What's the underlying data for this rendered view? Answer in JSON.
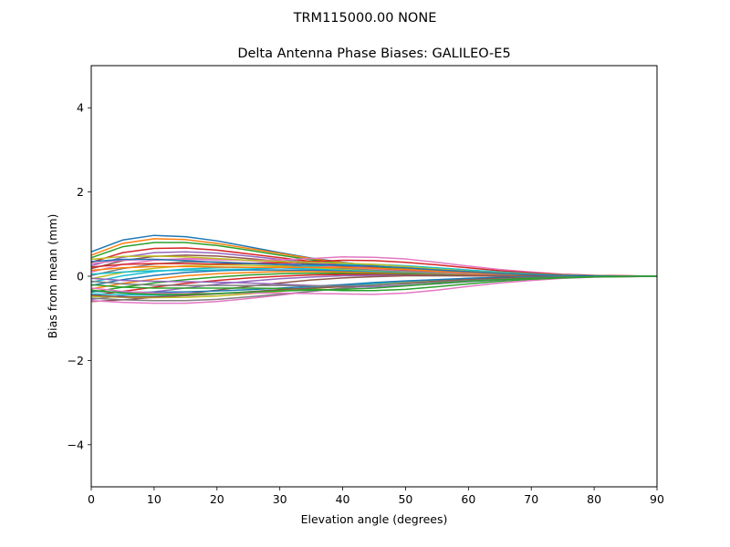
{
  "figure": {
    "suptitle": "TRM115000.00    NONE"
  },
  "chart_data": {
    "type": "line",
    "title": "Delta Antenna Phase Biases: GALILEO-E5",
    "xlabel": "Elevation angle (degrees)",
    "ylabel": "Bias from mean (mm)",
    "xlim": [
      0,
      90
    ],
    "ylim": [
      -5,
      5
    ],
    "xticks": [
      0,
      10,
      20,
      30,
      40,
      50,
      60,
      70,
      80,
      90
    ],
    "yticks": [
      -4,
      -2,
      0,
      2,
      4
    ],
    "ytick_labels": [
      "−4",
      "−2",
      "0",
      "2",
      "4"
    ],
    "grid": false,
    "legend": "none",
    "x": [
      0,
      5,
      10,
      15,
      20,
      25,
      30,
      35,
      40,
      45,
      50,
      55,
      60,
      65,
      70,
      75,
      80,
      85,
      90
    ],
    "series": [
      {
        "color": "#1f77b4",
        "values": [
          0.58,
          0.86,
          0.97,
          0.94,
          0.84,
          0.7,
          0.56,
          0.43,
          0.33,
          0.25,
          0.18,
          0.13,
          0.09,
          0.06,
          0.04,
          0.02,
          0.01,
          0.0,
          0.0
        ]
      },
      {
        "color": "#ff7f0e",
        "values": [
          0.5,
          0.78,
          0.89,
          0.87,
          0.78,
          0.66,
          0.54,
          0.42,
          0.32,
          0.24,
          0.17,
          0.12,
          0.08,
          0.05,
          0.03,
          0.02,
          0.01,
          0.0,
          0.0
        ]
      },
      {
        "color": "#2ca02c",
        "values": [
          0.44,
          0.7,
          0.8,
          0.8,
          0.73,
          0.62,
          0.5,
          0.39,
          0.3,
          0.22,
          0.16,
          0.11,
          0.07,
          0.05,
          0.03,
          0.02,
          0.01,
          0.0,
          0.0
        ]
      },
      {
        "color": "#d62728",
        "values": [
          0.33,
          0.56,
          0.66,
          0.67,
          0.62,
          0.53,
          0.44,
          0.35,
          0.27,
          0.2,
          0.14,
          0.1,
          0.07,
          0.04,
          0.03,
          0.02,
          0.01,
          0.0,
          0.0
        ]
      },
      {
        "color": "#9467bd",
        "values": [
          0.25,
          0.45,
          0.56,
          0.58,
          0.55,
          0.48,
          0.4,
          0.32,
          0.25,
          0.19,
          0.13,
          0.09,
          0.06,
          0.04,
          0.02,
          0.01,
          0.01,
          0.0,
          0.0
        ]
      },
      {
        "color": "#8c564b",
        "values": [
          0.18,
          0.37,
          0.47,
          0.5,
          0.48,
          0.42,
          0.36,
          0.29,
          0.23,
          0.17,
          0.12,
          0.08,
          0.05,
          0.03,
          0.02,
          0.01,
          0.0,
          0.0,
          0.0
        ]
      },
      {
        "color": "#e377c2",
        "values": [
          0.1,
          0.28,
          0.38,
          0.42,
          0.41,
          0.37,
          0.32,
          0.26,
          0.21,
          0.16,
          0.11,
          0.08,
          0.05,
          0.03,
          0.02,
          0.01,
          0.0,
          0.0,
          0.0
        ]
      },
      {
        "color": "#7f7f7f",
        "values": [
          0.02,
          0.18,
          0.29,
          0.34,
          0.34,
          0.31,
          0.27,
          0.23,
          0.18,
          0.14,
          0.1,
          0.07,
          0.04,
          0.03,
          0.02,
          0.01,
          0.0,
          0.0,
          0.0
        ]
      },
      {
        "color": "#bcbd22",
        "values": [
          -0.06,
          0.09,
          0.19,
          0.25,
          0.27,
          0.26,
          0.24,
          0.2,
          0.16,
          0.12,
          0.09,
          0.06,
          0.04,
          0.02,
          0.01,
          0.01,
          0.0,
          0.0,
          0.0
        ]
      },
      {
        "color": "#17becf",
        "values": [
          -0.14,
          0.01,
          0.11,
          0.17,
          0.2,
          0.21,
          0.2,
          0.17,
          0.14,
          0.11,
          0.08,
          0.05,
          0.03,
          0.02,
          0.01,
          0.01,
          0.0,
          0.0,
          0.0
        ]
      },
      {
        "color": "#1f77b4",
        "values": [
          -0.22,
          -0.08,
          0.02,
          0.09,
          0.13,
          0.15,
          0.15,
          0.14,
          0.12,
          0.09,
          0.07,
          0.05,
          0.03,
          0.02,
          0.01,
          0.0,
          0.0,
          0.0,
          0.0
        ]
      },
      {
        "color": "#ff7f0e",
        "values": [
          -0.3,
          -0.17,
          -0.07,
          0.01,
          0.06,
          0.09,
          0.11,
          0.11,
          0.1,
          0.08,
          0.06,
          0.04,
          0.03,
          0.02,
          0.01,
          0.0,
          0.0,
          0.0,
          0.0
        ]
      },
      {
        "color": "#2ca02c",
        "values": [
          -0.38,
          -0.26,
          -0.16,
          -0.08,
          -0.02,
          0.03,
          0.06,
          0.07,
          0.07,
          0.06,
          0.05,
          0.03,
          0.02,
          0.01,
          0.01,
          0.0,
          0.0,
          0.0,
          0.0
        ]
      },
      {
        "color": "#d62728",
        "values": [
          -0.46,
          -0.36,
          -0.26,
          -0.17,
          -0.1,
          -0.04,
          0.0,
          0.03,
          0.04,
          0.04,
          0.03,
          0.02,
          0.02,
          0.01,
          0.0,
          0.0,
          0.0,
          0.0,
          0.0
        ]
      },
      {
        "color": "#9467bd",
        "values": [
          -0.55,
          -0.46,
          -0.37,
          -0.28,
          -0.19,
          -0.12,
          -0.06,
          -0.02,
          0.01,
          0.02,
          0.02,
          0.02,
          0.01,
          0.01,
          0.0,
          0.0,
          0.0,
          0.0,
          0.0
        ]
      },
      {
        "color": "#8c564b",
        "values": [
          -0.6,
          -0.56,
          -0.5,
          -0.42,
          -0.33,
          -0.24,
          -0.16,
          -0.09,
          -0.04,
          -0.01,
          0.01,
          0.01,
          0.01,
          0.0,
          0.0,
          0.0,
          0.0,
          0.0,
          0.0
        ]
      },
      {
        "color": "#e377c2",
        "values": [
          -0.58,
          -0.62,
          -0.64,
          -0.64,
          -0.6,
          -0.53,
          -0.45,
          -0.36,
          -0.28,
          -0.21,
          -0.15,
          -0.1,
          -0.06,
          -0.04,
          -0.02,
          -0.01,
          0.0,
          0.0,
          0.0
        ]
      },
      {
        "color": "#7f7f7f",
        "values": [
          -0.52,
          -0.56,
          -0.58,
          -0.58,
          -0.55,
          -0.49,
          -0.43,
          -0.36,
          -0.29,
          -0.22,
          -0.16,
          -0.11,
          -0.07,
          -0.04,
          -0.02,
          -0.01,
          0.0,
          0.0,
          0.0
        ]
      },
      {
        "color": "#bcbd22",
        "values": [
          -0.48,
          -0.5,
          -0.51,
          -0.5,
          -0.47,
          -0.42,
          -0.36,
          -0.3,
          -0.24,
          -0.18,
          -0.13,
          -0.09,
          -0.06,
          -0.03,
          -0.02,
          -0.01,
          0.0,
          0.0,
          0.0
        ]
      },
      {
        "color": "#17becf",
        "values": [
          -0.42,
          -0.44,
          -0.45,
          -0.44,
          -0.41,
          -0.37,
          -0.32,
          -0.27,
          -0.22,
          -0.17,
          -0.12,
          -0.08,
          -0.05,
          -0.03,
          -0.02,
          -0.01,
          0.0,
          0.0,
          0.0
        ]
      },
      {
        "color": "#1f77b4",
        "values": [
          -0.36,
          -0.38,
          -0.38,
          -0.37,
          -0.35,
          -0.32,
          -0.28,
          -0.24,
          -0.2,
          -0.15,
          -0.11,
          -0.08,
          -0.05,
          -0.03,
          -0.02,
          -0.01,
          0.0,
          0.0,
          0.0
        ]
      },
      {
        "color": "#e377c2",
        "values": [
          -0.28,
          -0.36,
          -0.4,
          -0.41,
          -0.41,
          -0.4,
          -0.4,
          -0.41,
          -0.42,
          -0.43,
          -0.4,
          -0.33,
          -0.24,
          -0.16,
          -0.1,
          -0.05,
          -0.02,
          -0.01,
          0.0
        ]
      },
      {
        "color": "#e377c2",
        "values": [
          0.3,
          0.38,
          0.4,
          0.4,
          0.39,
          0.38,
          0.39,
          0.42,
          0.46,
          0.45,
          0.41,
          0.33,
          0.24,
          0.16,
          0.1,
          0.05,
          0.02,
          0.01,
          0.0
        ]
      },
      {
        "color": "#d62728",
        "values": [
          0.22,
          0.28,
          0.3,
          0.3,
          0.29,
          0.3,
          0.32,
          0.35,
          0.38,
          0.37,
          0.33,
          0.27,
          0.2,
          0.13,
          0.08,
          0.04,
          0.02,
          0.01,
          0.0
        ]
      },
      {
        "color": "#2ca02c",
        "values": [
          -0.2,
          -0.26,
          -0.28,
          -0.28,
          -0.28,
          -0.28,
          -0.29,
          -0.31,
          -0.34,
          -0.34,
          -0.31,
          -0.25,
          -0.18,
          -0.12,
          -0.07,
          -0.04,
          -0.02,
          -0.01,
          0.0
        ]
      },
      {
        "color": "#17becf",
        "values": [
          0.05,
          0.1,
          0.13,
          0.14,
          0.15,
          0.17,
          0.2,
          0.24,
          0.28,
          0.28,
          0.25,
          0.2,
          0.15,
          0.1,
          0.06,
          0.03,
          0.01,
          0.0,
          0.0
        ]
      },
      {
        "color": "#9467bd",
        "values": [
          -0.05,
          -0.1,
          -0.12,
          -0.13,
          -0.14,
          -0.16,
          -0.19,
          -0.22,
          -0.25,
          -0.25,
          -0.22,
          -0.18,
          -0.13,
          -0.09,
          -0.05,
          -0.03,
          -0.01,
          0.0,
          0.0
        ]
      },
      {
        "color": "#bcbd22",
        "values": [
          0.4,
          0.47,
          0.48,
          0.46,
          0.42,
          0.38,
          0.35,
          0.33,
          0.31,
          0.28,
          0.23,
          0.17,
          0.12,
          0.08,
          0.05,
          0.03,
          0.01,
          0.0,
          0.0
        ]
      },
      {
        "color": "#8c564b",
        "values": [
          -0.45,
          -0.49,
          -0.49,
          -0.46,
          -0.42,
          -0.37,
          -0.32,
          -0.28,
          -0.25,
          -0.21,
          -0.17,
          -0.12,
          -0.08,
          -0.05,
          -0.03,
          -0.02,
          -0.01,
          0.0,
          0.0
        ]
      },
      {
        "color": "#ff7f0e",
        "values": [
          0.14,
          0.2,
          0.23,
          0.23,
          0.22,
          0.21,
          0.21,
          0.21,
          0.21,
          0.19,
          0.16,
          0.12,
          0.09,
          0.06,
          0.04,
          0.02,
          0.01,
          0.0,
          0.0
        ]
      },
      {
        "color": "#7f7f7f",
        "values": [
          -0.12,
          -0.18,
          -0.21,
          -0.22,
          -0.22,
          -0.22,
          -0.22,
          -0.23,
          -0.23,
          -0.21,
          -0.18,
          -0.14,
          -0.1,
          -0.07,
          -0.04,
          -0.02,
          -0.01,
          0.0,
          0.0
        ]
      },
      {
        "color": "#1f77b4",
        "values": [
          0.35,
          0.4,
          0.4,
          0.37,
          0.33,
          0.3,
          0.28,
          0.27,
          0.26,
          0.24,
          0.2,
          0.15,
          0.11,
          0.07,
          0.04,
          0.02,
          0.01,
          0.0,
          0.0
        ]
      },
      {
        "color": "#2ca02c",
        "values": [
          -0.33,
          -0.4,
          -0.43,
          -0.43,
          -0.41,
          -0.38,
          -0.35,
          -0.33,
          -0.31,
          -0.28,
          -0.23,
          -0.17,
          -0.12,
          -0.08,
          -0.05,
          -0.03,
          -0.01,
          0.0,
          0.0
        ]
      }
    ]
  }
}
